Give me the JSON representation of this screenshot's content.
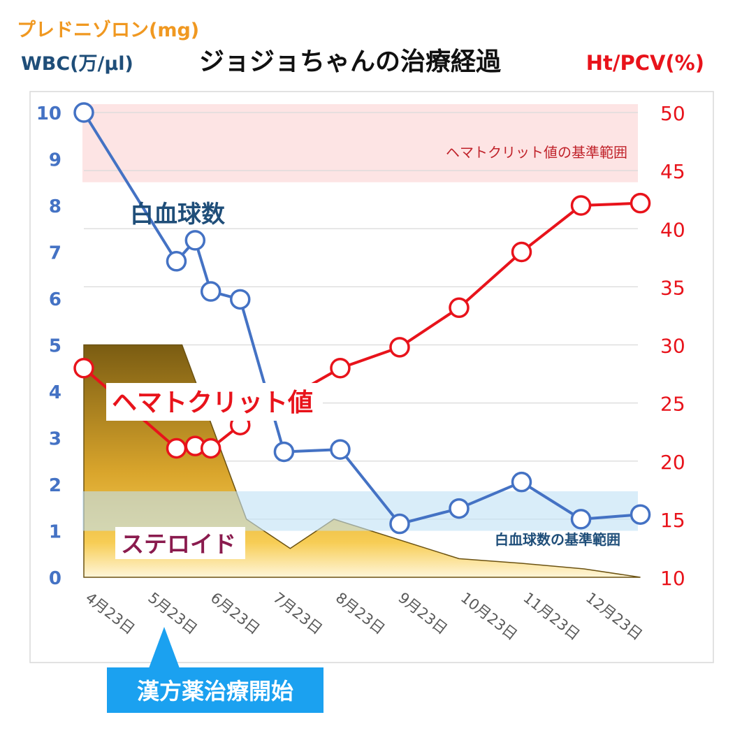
{
  "title": "ジョジョちゃんの治療経過",
  "axis_labels": {
    "left_top": "プレドニゾロン(mg)",
    "left": "WBC(万/μl)",
    "right": "Ht/PCV(%)"
  },
  "annotations": {
    "wbc_series_label": "白血球数",
    "ht_series_label": "ヘマトクリット値",
    "steroid_label": "ステロイド",
    "ht_reference_label": "ヘマトクリット値の基準範囲",
    "wbc_reference_label": "白血球数の基準範囲",
    "kampo_start": "漢方薬治療開始"
  },
  "colors": {
    "wbc": "#4472c4",
    "ht": "#e8131b",
    "steroid_dark": "#7a5c12",
    "steroid_light": "#ffd24d",
    "ht_band": "#fde4e4",
    "wbc_band": "#d6ecf8",
    "left_label": "#1f4e79",
    "right_label": "#e8131b",
    "kampo_box": "#1ba1f0",
    "steroid_text": "#8a1b4e",
    "orange_label": "#f09820"
  },
  "chart_data": {
    "type": "line",
    "title": "ジョジョちゃんの治療経過",
    "x_categories": [
      "4月23日",
      "5月23日",
      "6月23日",
      "7月23日",
      "8月23日",
      "9月23日",
      "10月23日",
      "11月23日",
      "12月23日"
    ],
    "y_left": {
      "label": "WBC(万/μl)",
      "range": [
        0,
        10
      ],
      "ticks": [
        0,
        1,
        2,
        3,
        4,
        5,
        6,
        7,
        8,
        9,
        10
      ]
    },
    "y_right": {
      "label": "Ht/PCV(%)",
      "range": [
        10,
        50
      ],
      "ticks": [
        10,
        15,
        20,
        25,
        30,
        35,
        40,
        45,
        50
      ]
    },
    "grid": true,
    "reference_bands": [
      {
        "name": "ヘマトクリット値の基準範囲",
        "axis": "right",
        "range": [
          44,
          50
        ]
      },
      {
        "name": "白血球数の基準範囲",
        "axis": "left",
        "range": [
          1,
          1.85
        ]
      }
    ],
    "series": [
      {
        "name": "白血球数",
        "axis": "left",
        "points": [
          {
            "x": 0.0,
            "y": 10.0
          },
          {
            "x": 1.48,
            "y": 6.8
          },
          {
            "x": 1.78,
            "y": 7.25
          },
          {
            "x": 2.03,
            "y": 6.15
          },
          {
            "x": 2.5,
            "y": 5.98
          },
          {
            "x": 3.2,
            "y": 2.7
          },
          {
            "x": 4.1,
            "y": 2.75
          },
          {
            "x": 5.05,
            "y": 1.15
          },
          {
            "x": 6.0,
            "y": 1.48
          },
          {
            "x": 7.0,
            "y": 2.05
          },
          {
            "x": 7.95,
            "y": 1.25
          },
          {
            "x": 8.9,
            "y": 1.35
          }
        ]
      },
      {
        "name": "ヘマトクリット値",
        "axis": "right",
        "points": [
          {
            "x": 0.0,
            "y": 28
          },
          {
            "x": 1.48,
            "y": 21.1
          },
          {
            "x": 1.78,
            "y": 21.3
          },
          {
            "x": 2.03,
            "y": 21.1
          },
          {
            "x": 2.5,
            "y": 23.1
          },
          {
            "x": 4.1,
            "y": 28.0
          },
          {
            "x": 5.05,
            "y": 29.8
          },
          {
            "x": 6.0,
            "y": 33.2
          },
          {
            "x": 7.0,
            "y": 38.0
          },
          {
            "x": 7.95,
            "y": 42.0
          },
          {
            "x": 8.9,
            "y": 42.2
          }
        ]
      },
      {
        "name": "ステロイド",
        "type": "area",
        "axis": "left",
        "points": [
          {
            "x": 0.0,
            "y": 5
          },
          {
            "x": 1.57,
            "y": 5
          },
          {
            "x": 2.6,
            "y": 1.25
          },
          {
            "x": 3.3,
            "y": 0.62
          },
          {
            "x": 4.0,
            "y": 1.25
          },
          {
            "x": 6.0,
            "y": 0.4
          },
          {
            "x": 7.0,
            "y": 0.3
          },
          {
            "x": 8.0,
            "y": 0.18
          },
          {
            "x": 8.9,
            "y": 0.0
          }
        ]
      }
    ],
    "annotation_arrow": {
      "label": "漢方薬治療開始",
      "x": 1.3
    }
  }
}
